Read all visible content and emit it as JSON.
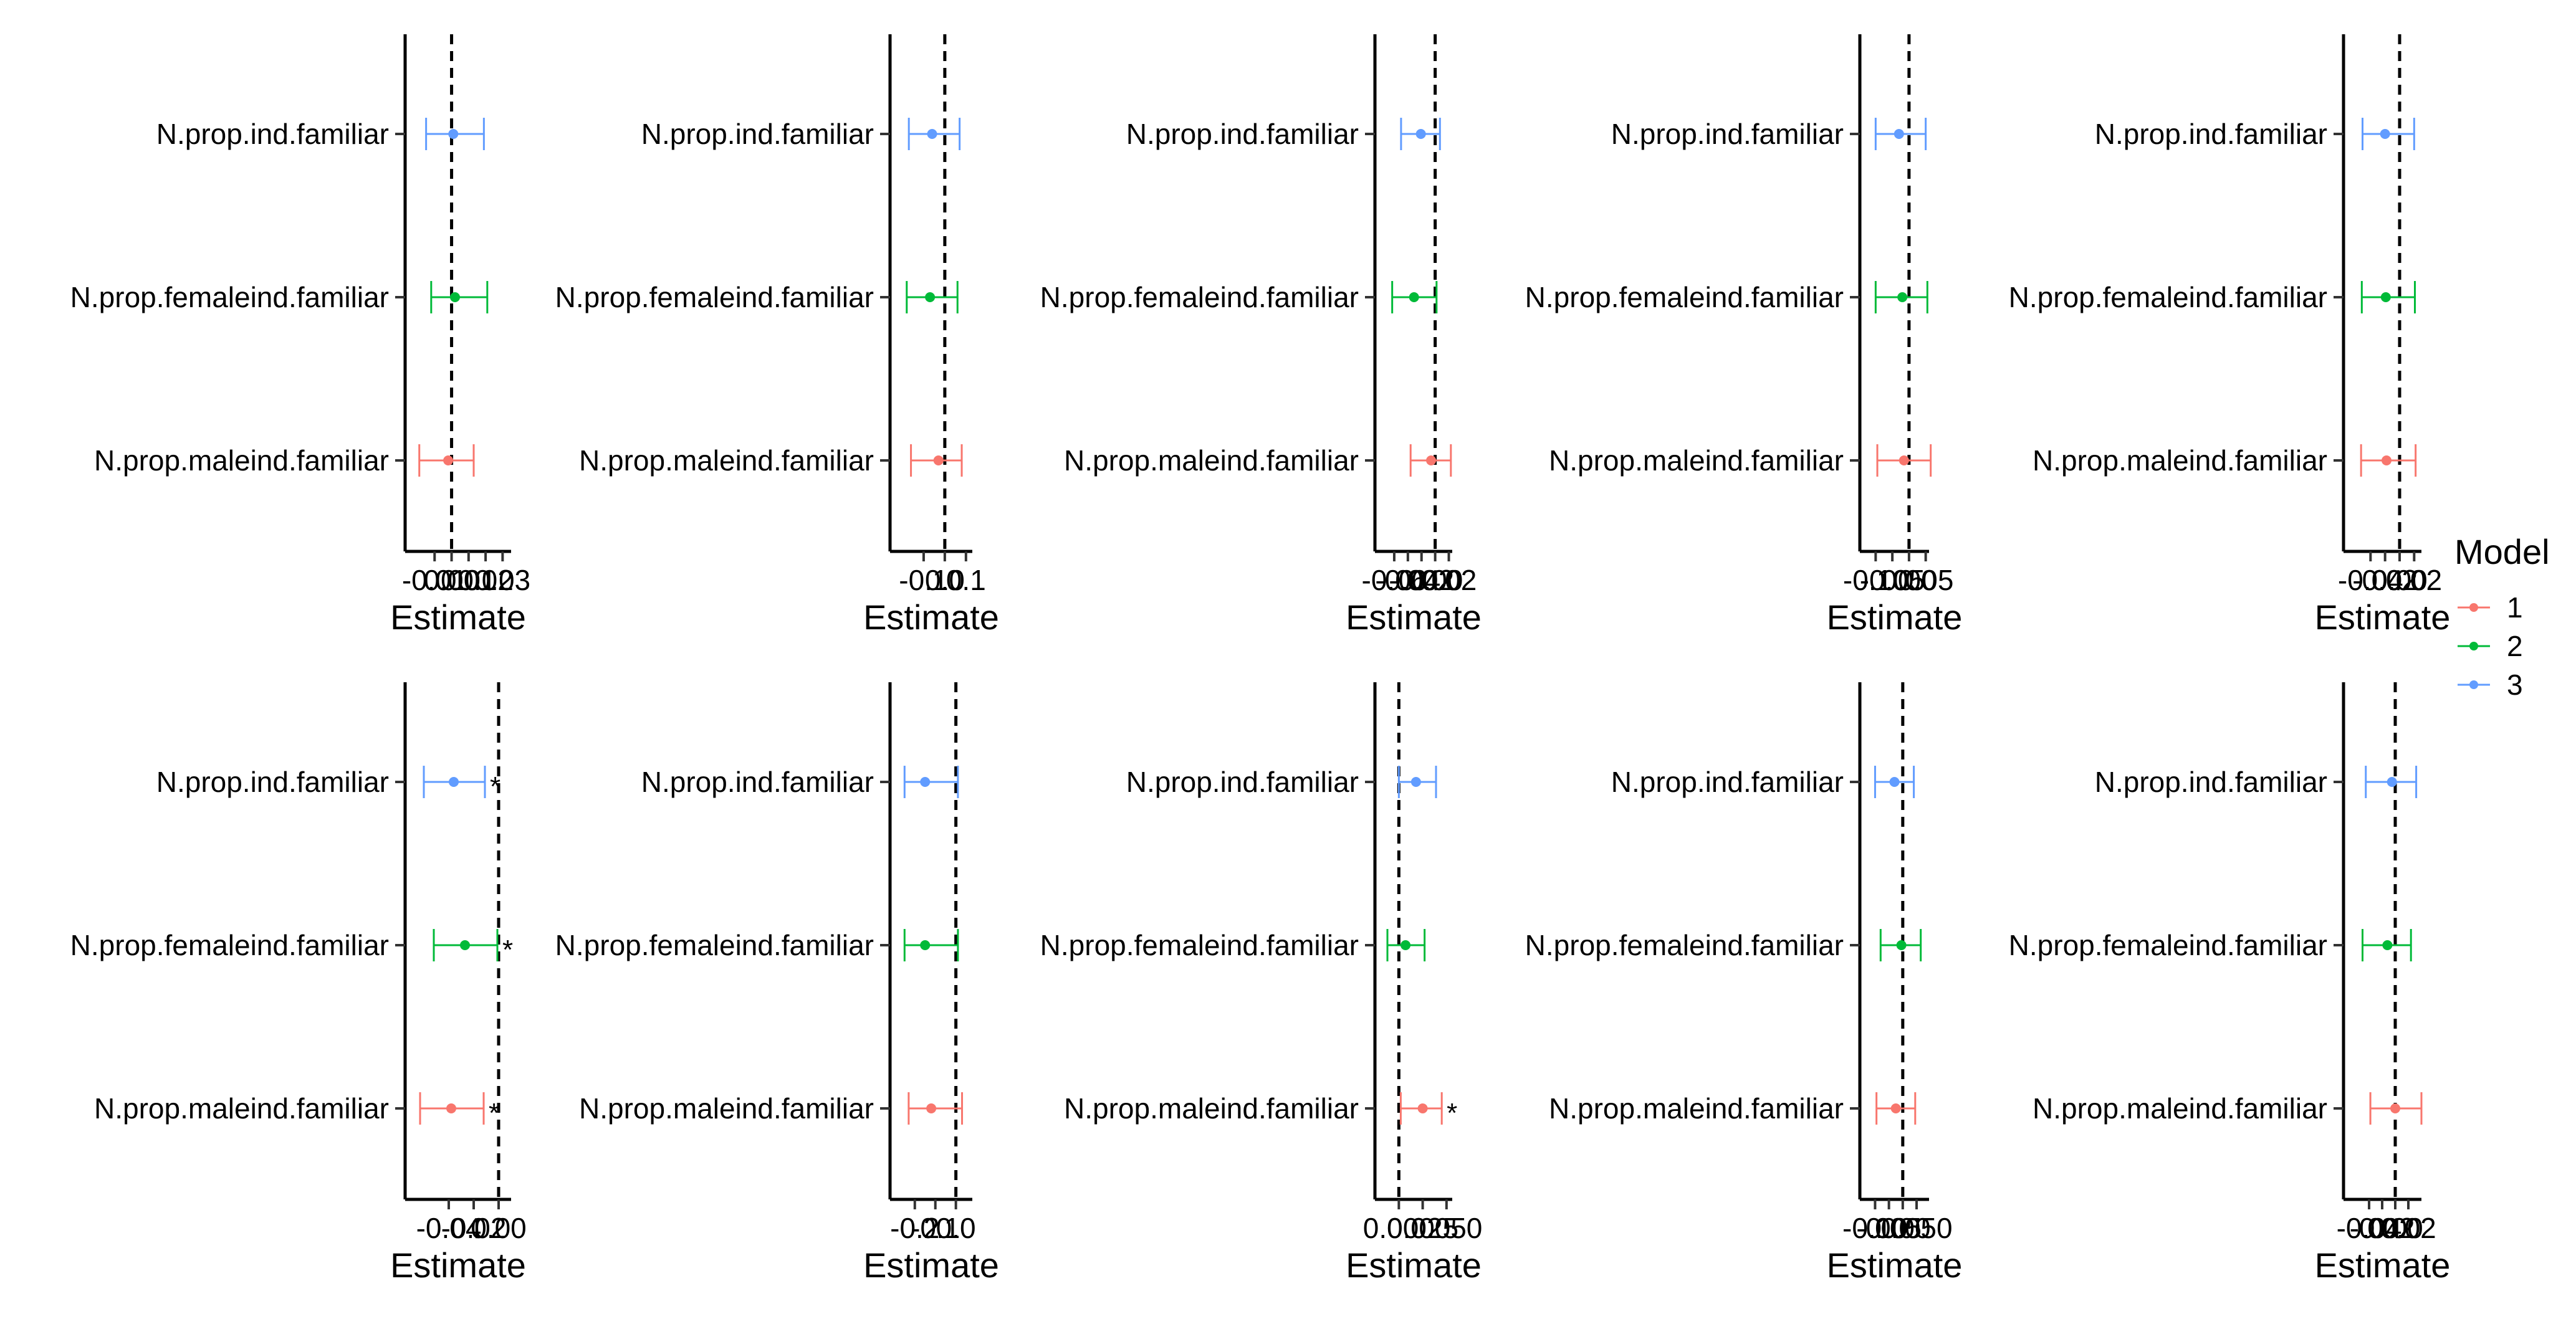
{
  "chart_data": {
    "type": "scatter",
    "subtype": "coefficient-plot-with-error-bars",
    "grid": false,
    "legend": {
      "title": "Model",
      "placement": "right",
      "entries": [
        {
          "label": "1",
          "color": "#F8766D"
        },
        {
          "label": "2",
          "color": "#00BA38"
        },
        {
          "label": "3",
          "color": "#619CFF"
        }
      ]
    },
    "categories": [
      "N.prop.ind.familiar",
      "N.prop.femaleind.familiar",
      "N.prop.maleind.familiar"
    ],
    "reference_line_x": 0,
    "panels": [
      {
        "xlabel": "Estimate",
        "xlim": [
          -0.02,
          0.035
        ],
        "ticks": [
          -0.01,
          0.0,
          0.01,
          0.02,
          0.03
        ],
        "tick_labels": [
          "-0.01",
          "0.00",
          "0.01",
          "0.02",
          "0.03"
        ],
        "series": [
          {
            "name": "3",
            "category": "N.prop.ind.familiar",
            "estimate": 0.001,
            "lower": -0.015,
            "upper": 0.019,
            "significant": false
          },
          {
            "name": "2",
            "category": "N.prop.femaleind.familiar",
            "estimate": 0.002,
            "lower": -0.012,
            "upper": 0.021,
            "significant": false
          },
          {
            "name": "1",
            "category": "N.prop.maleind.familiar",
            "estimate": -0.002,
            "lower": -0.019,
            "upper": 0.013,
            "significant": false
          }
        ]
      },
      {
        "xlabel": "Estimate",
        "xlim": [
          -0.2,
          0.13
        ],
        "ticks": [
          -0.1,
          0.0,
          0.1
        ],
        "tick_labels": [
          "-0.1",
          "0.0",
          "0.1"
        ],
        "series": [
          {
            "name": "3",
            "category": "N.prop.ind.familiar",
            "estimate": -0.06,
            "lower": -0.17,
            "upper": 0.07,
            "significant": false
          },
          {
            "name": "2",
            "category": "N.prop.femaleind.familiar",
            "estimate": -0.07,
            "lower": -0.18,
            "upper": 0.06,
            "significant": false
          },
          {
            "name": "1",
            "category": "N.prop.maleind.familiar",
            "estimate": -0.03,
            "lower": -0.16,
            "upper": 0.08,
            "significant": false
          }
        ]
      },
      {
        "xlabel": "Estimate",
        "xlim": [
          -0.07,
          0.025
        ],
        "ticks": [
          -0.06,
          -0.04,
          -0.02,
          0.0,
          0.02
        ],
        "tick_labels": [
          "-0.06",
          "-0.04",
          "-0.02",
          "0.00",
          "0.02"
        ],
        "series": [
          {
            "name": "3",
            "category": "N.prop.ind.familiar",
            "estimate": -0.021,
            "lower": -0.05,
            "upper": 0.007,
            "significant": false
          },
          {
            "name": "2",
            "category": "N.prop.femaleind.familiar",
            "estimate": -0.031,
            "lower": -0.063,
            "upper": 0.002,
            "significant": false
          },
          {
            "name": "1",
            "category": "N.prop.maleind.familiar",
            "estimate": -0.006,
            "lower": -0.036,
            "upper": 0.023,
            "significant": false
          }
        ]
      },
      {
        "xlabel": "Estimate",
        "xlim": [
          -0.11,
          0.06
        ],
        "ticks": [
          -0.1,
          -0.05,
          0.0,
          0.05
        ],
        "tick_labels": [
          "-0.10",
          "-0.05",
          "0.00",
          "0.05"
        ],
        "series": [
          {
            "name": "3",
            "category": "N.prop.ind.familiar",
            "estimate": -0.03,
            "lower": -0.1,
            "upper": 0.05,
            "significant": false
          },
          {
            "name": "2",
            "category": "N.prop.femaleind.familiar",
            "estimate": -0.02,
            "lower": -0.1,
            "upper": 0.055,
            "significant": false
          },
          {
            "name": "1",
            "category": "N.prop.maleind.familiar",
            "estimate": -0.015,
            "lower": -0.095,
            "upper": 0.065,
            "significant": false
          }
        ]
      },
      {
        "xlabel": "Estimate",
        "xlim": [
          -0.06,
          0.03
        ],
        "ticks": [
          -0.04,
          -0.02,
          0.0,
          0.02
        ],
        "tick_labels": [
          "-0.04",
          "-0.02",
          "0.00",
          "0.02"
        ],
        "series": [
          {
            "name": "3",
            "category": "N.prop.ind.familiar",
            "estimate": -0.02,
            "lower": -0.051,
            "upper": 0.02,
            "significant": false
          },
          {
            "name": "2",
            "category": "N.prop.femaleind.familiar",
            "estimate": -0.019,
            "lower": -0.052,
            "upper": 0.021,
            "significant": false
          },
          {
            "name": "1",
            "category": "N.prop.maleind.familiar",
            "estimate": -0.018,
            "lower": -0.053,
            "upper": 0.022,
            "significant": false
          }
        ]
      },
      {
        "xlabel": "Estimate",
        "xlim": [
          -0.065,
          0.01
        ],
        "ticks": [
          -0.04,
          -0.02,
          0.0
        ],
        "tick_labels": [
          "-0.04",
          "-0.02",
          "0.00"
        ],
        "series": [
          {
            "name": "3",
            "category": "N.prop.ind.familiar",
            "estimate": -0.036,
            "lower": -0.06,
            "upper": -0.011,
            "significant": true
          },
          {
            "name": "2",
            "category": "N.prop.femaleind.familiar",
            "estimate": -0.027,
            "lower": -0.052,
            "upper": -0.001,
            "significant": true
          },
          {
            "name": "1",
            "category": "N.prop.maleind.familiar",
            "estimate": -0.038,
            "lower": -0.063,
            "upper": -0.012,
            "significant": true
          }
        ]
      },
      {
        "xlabel": "Estimate",
        "xlim": [
          -0.26,
          0.08
        ],
        "ticks": [
          -0.2,
          -0.1,
          0.0
        ],
        "tick_labels": [
          "-0.2",
          "-0.1",
          "0.0"
        ],
        "series": [
          {
            "name": "3",
            "category": "N.prop.ind.familiar",
            "estimate": -0.15,
            "lower": -0.25,
            "upper": 0.01,
            "significant": false
          },
          {
            "name": "2",
            "category": "N.prop.femaleind.familiar",
            "estimate": -0.15,
            "lower": -0.25,
            "upper": 0.01,
            "significant": false
          },
          {
            "name": "1",
            "category": "N.prop.maleind.familiar",
            "estimate": -0.12,
            "lower": -0.23,
            "upper": 0.03,
            "significant": false
          }
        ]
      },
      {
        "xlabel": "Estimate",
        "xlim": [
          -0.012,
          0.056
        ],
        "ticks": [
          0.0,
          0.025,
          0.05
        ],
        "tick_labels": [
          "0.000",
          "0.025",
          "0.050"
        ],
        "series": [
          {
            "name": "3",
            "category": "N.prop.ind.familiar",
            "estimate": 0.018,
            "lower": 0.0,
            "upper": 0.039,
            "significant": false
          },
          {
            "name": "2",
            "category": "N.prop.femaleind.familiar",
            "estimate": 0.007,
            "lower": -0.012,
            "upper": 0.027,
            "significant": false
          },
          {
            "name": "1",
            "category": "N.prop.maleind.familiar",
            "estimate": 0.025,
            "lower": 0.002,
            "upper": 0.045,
            "significant": true
          }
        ]
      },
      {
        "xlabel": "Estimate",
        "xlim": [
          -0.11,
          0.095
        ],
        "ticks": [
          -0.1,
          -0.05,
          0.0,
          0.05
        ],
        "tick_labels": [
          "-0.10",
          "-0.05",
          "0.00",
          "0.050"
        ],
        "series": [
          {
            "name": "3",
            "category": "N.prop.ind.familiar",
            "estimate": -0.03,
            "lower": -0.1,
            "upper": 0.04,
            "significant": false
          },
          {
            "name": "2",
            "category": "N.prop.femaleind.familiar",
            "estimate": -0.005,
            "lower": -0.08,
            "upper": 0.065,
            "significant": false
          },
          {
            "name": "1",
            "category": "N.prop.maleind.familiar",
            "estimate": -0.025,
            "lower": -0.095,
            "upper": 0.045,
            "significant": false
          }
        ]
      },
      {
        "xlabel": "Estimate",
        "xlim": [
          -0.06,
          0.04
        ],
        "ticks": [
          -0.04,
          -0.02,
          0.0,
          0.02
        ],
        "tick_labels": [
          "-0.04",
          "-0.02",
          "0.00",
          "0.02"
        ],
        "series": [
          {
            "name": "3",
            "category": "N.prop.ind.familiar",
            "estimate": -0.005,
            "lower": -0.045,
            "upper": 0.032,
            "significant": false
          },
          {
            "name": "2",
            "category": "N.prop.femaleind.familiar",
            "estimate": -0.012,
            "lower": -0.05,
            "upper": 0.024,
            "significant": false
          },
          {
            "name": "1",
            "category": "N.prop.maleind.familiar",
            "estimate": 0.0,
            "lower": -0.038,
            "upper": 0.04,
            "significant": false
          }
        ]
      }
    ]
  }
}
